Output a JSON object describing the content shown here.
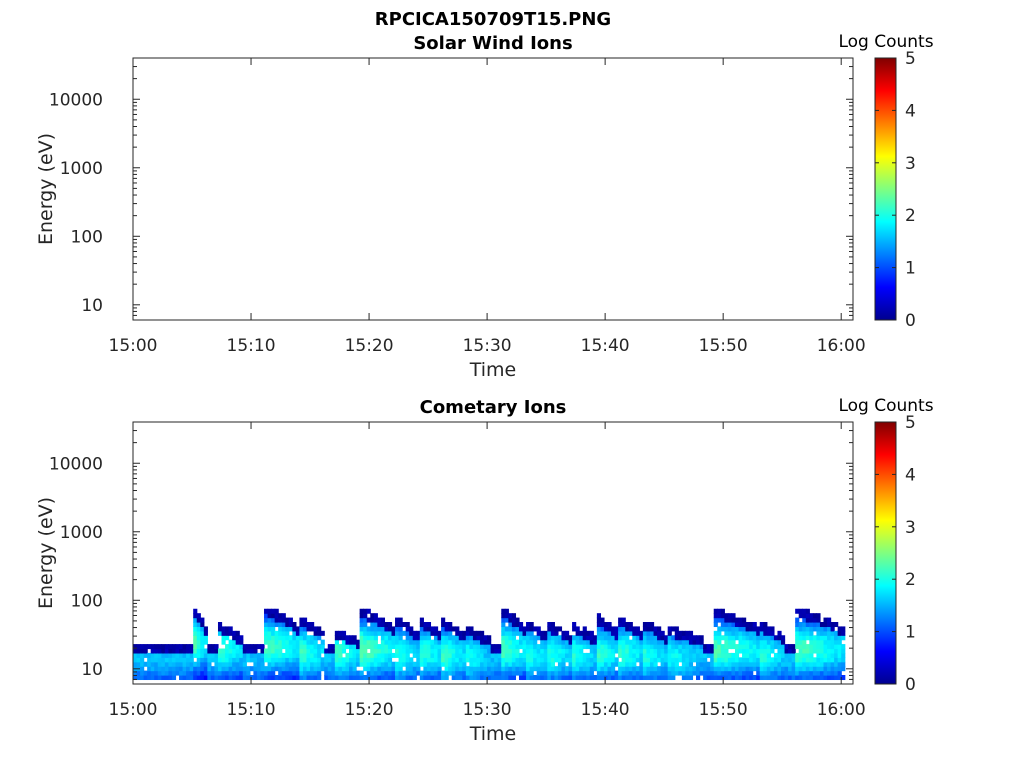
{
  "figure_title": "RPCICA150709T15.PNG",
  "chart_data": [
    {
      "type": "heatmap",
      "title": "Solar Wind Ions",
      "xlabel": "Time",
      "ylabel": "Energy (eV)",
      "x_ticks": [
        "15:00",
        "15:10",
        "15:20",
        "15:30",
        "15:40",
        "15:50",
        "16:00"
      ],
      "xlim": [
        "15:00",
        "16:01"
      ],
      "y_scale": "log",
      "y_ticks": [
        10,
        100,
        1000,
        10000
      ],
      "ylim": [
        6,
        40000
      ],
      "colorbar": {
        "label": "Log Counts",
        "ticks": [
          0,
          1,
          2,
          3,
          4,
          5
        ],
        "range": [
          0,
          5
        ],
        "colormap": "jet"
      },
      "data_present": false,
      "bursts": []
    },
    {
      "type": "heatmap",
      "title": "Cometary Ions",
      "xlabel": "Time",
      "ylabel": "Energy (eV)",
      "x_ticks": [
        "15:00",
        "15:10",
        "15:20",
        "15:30",
        "15:40",
        "15:50",
        "16:00"
      ],
      "xlim": [
        "15:00",
        "16:01"
      ],
      "y_scale": "log",
      "y_ticks": [
        10,
        100,
        1000,
        10000
      ],
      "ylim": [
        6,
        40000
      ],
      "colorbar": {
        "label": "Log Counts",
        "ticks": [
          0,
          1,
          2,
          3,
          4,
          5
        ],
        "range": [
          0,
          5
        ],
        "colormap": "jet"
      },
      "data_present": true,
      "background": {
        "start": "15:00",
        "end": "16:00",
        "max_energy_ev": 22,
        "peak_energy_ev": 14,
        "peak_log_counts": 1.3
      },
      "bursts": [
        {
          "start": "15:05",
          "end": "15:06",
          "max_energy_ev": 75,
          "peak_energy_ev": 22,
          "peak_log_counts": 2.0
        },
        {
          "start": "15:07",
          "end": "15:09",
          "max_energy_ev": 45,
          "peak_energy_ev": 18,
          "peak_log_counts": 1.9
        },
        {
          "start": "15:11",
          "end": "15:14",
          "max_energy_ev": 78,
          "peak_energy_ev": 20,
          "peak_log_counts": 2.0
        },
        {
          "start": "15:14",
          "end": "15:16",
          "max_energy_ev": 55,
          "peak_energy_ev": 16,
          "peak_log_counts": 1.9
        },
        {
          "start": "15:17",
          "end": "15:19",
          "max_energy_ev": 35,
          "peak_energy_ev": 16,
          "peak_log_counts": 1.9
        },
        {
          "start": "15:19",
          "end": "15:22",
          "max_energy_ev": 75,
          "peak_energy_ev": 18,
          "peak_log_counts": 2.1
        },
        {
          "start": "15:22",
          "end": "15:24",
          "max_energy_ev": 55,
          "peak_energy_ev": 15,
          "peak_log_counts": 1.8
        },
        {
          "start": "15:24",
          "end": "15:26",
          "max_energy_ev": 55,
          "peak_energy_ev": 16,
          "peak_log_counts": 1.9
        },
        {
          "start": "15:26",
          "end": "15:28",
          "max_energy_ev": 50,
          "peak_energy_ev": 15,
          "peak_log_counts": 1.9
        },
        {
          "start": "15:28",
          "end": "15:30",
          "max_energy_ev": 40,
          "peak_energy_ev": 14,
          "peak_log_counts": 1.7
        },
        {
          "start": "15:31",
          "end": "15:33",
          "max_energy_ev": 78,
          "peak_energy_ev": 18,
          "peak_log_counts": 2.0
        },
        {
          "start": "15:33",
          "end": "15:35",
          "max_energy_ev": 50,
          "peak_energy_ev": 15,
          "peak_log_counts": 1.8
        },
        {
          "start": "15:35",
          "end": "15:37",
          "max_energy_ev": 45,
          "peak_energy_ev": 15,
          "peak_log_counts": 1.8
        },
        {
          "start": "15:37",
          "end": "15:39",
          "max_energy_ev": 45,
          "peak_energy_ev": 15,
          "peak_log_counts": 1.8
        },
        {
          "start": "15:39",
          "end": "15:41",
          "max_energy_ev": 60,
          "peak_energy_ev": 16,
          "peak_log_counts": 1.9
        },
        {
          "start": "15:41",
          "end": "15:43",
          "max_energy_ev": 55,
          "peak_energy_ev": 16,
          "peak_log_counts": 1.9
        },
        {
          "start": "15:43",
          "end": "15:45",
          "max_energy_ev": 50,
          "peak_energy_ev": 15,
          "peak_log_counts": 1.8
        },
        {
          "start": "15:45",
          "end": "15:48",
          "max_energy_ev": 40,
          "peak_energy_ev": 14,
          "peak_log_counts": 1.7
        },
        {
          "start": "15:49",
          "end": "15:53",
          "max_energy_ev": 75,
          "peak_energy_ev": 18,
          "peak_log_counts": 2.0
        },
        {
          "start": "15:53",
          "end": "15:55",
          "max_energy_ev": 45,
          "peak_energy_ev": 15,
          "peak_log_counts": 1.8
        },
        {
          "start": "15:56",
          "end": "16:00",
          "max_energy_ev": 75,
          "peak_energy_ev": 18,
          "peak_log_counts": 2.0
        }
      ]
    }
  ]
}
